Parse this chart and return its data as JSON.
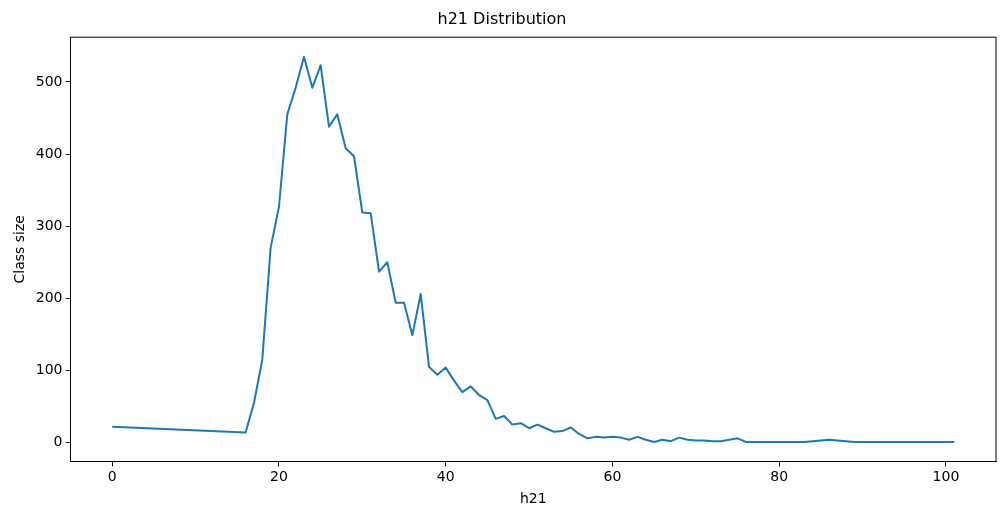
{
  "chart_data": {
    "type": "line",
    "title": "h21 Distribution",
    "xlabel": "h21",
    "ylabel": "Class size",
    "x": [
      0,
      16,
      17,
      18,
      19,
      20,
      21,
      22,
      23,
      24,
      25,
      26,
      27,
      28,
      29,
      30,
      31,
      32,
      33,
      34,
      35,
      36,
      37,
      38,
      39,
      40,
      41,
      42,
      43,
      44,
      45,
      46,
      47,
      48,
      49,
      50,
      51,
      52,
      53,
      54,
      55,
      56,
      57,
      58,
      59,
      60,
      61,
      62,
      63,
      64,
      65,
      66,
      67,
      68,
      69,
      70,
      71,
      72,
      73,
      74,
      75,
      76,
      83,
      86,
      89,
      101
    ],
    "series": [
      {
        "color": "#1f77b4",
        "values": [
          22,
          14,
          55,
          115,
          270,
          327,
          455,
          492,
          535,
          492,
          523,
          438,
          455,
          408,
          397,
          319,
          318,
          237,
          250,
          194,
          194,
          149,
          206,
          105,
          94,
          104,
          86,
          70,
          78,
          66,
          59,
          33,
          37,
          25,
          27,
          20,
          25,
          20,
          15,
          16,
          21,
          12,
          6,
          8,
          7,
          8,
          7,
          4,
          8,
          4,
          1,
          4,
          2,
          7,
          4,
          3,
          3,
          2,
          2,
          4,
          6,
          1,
          1,
          4,
          1,
          1
        ]
      }
    ],
    "xlim": [
      -5,
      106
    ],
    "ylim": [
      -26,
      562
    ],
    "xticks": [
      0,
      20,
      40,
      60,
      80,
      100
    ],
    "yticks": [
      0,
      100,
      200,
      300,
      400,
      500
    ],
    "grid": false,
    "legend": false
  }
}
